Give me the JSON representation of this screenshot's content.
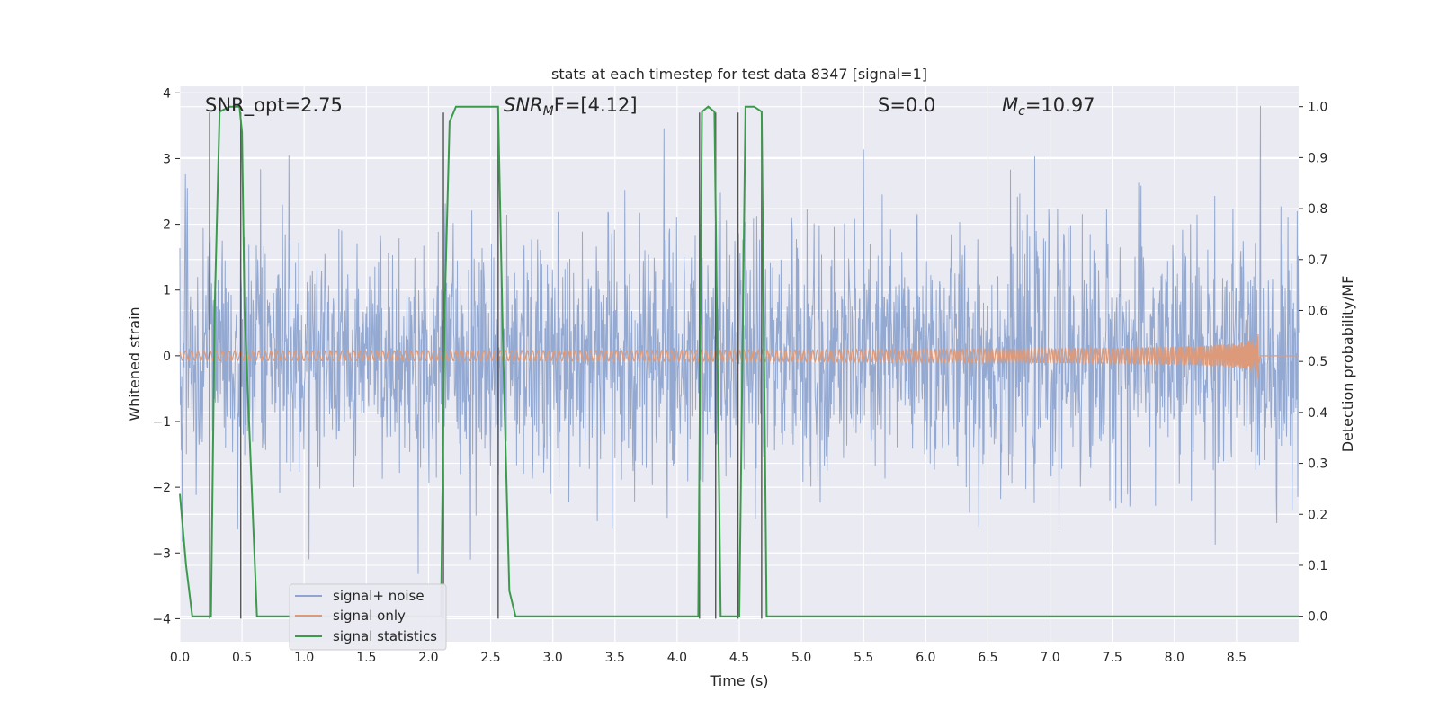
{
  "chart_data": {
    "type": "line",
    "title": "stats at each timestep for test data 8347 [signal=1]",
    "xlabel": "Time (s)",
    "ylabel_left": "Whitened strain",
    "ylabel_right": "Detection probability/MF",
    "xlim": [
      0.0,
      9.0
    ],
    "ylim_left": [
      -4.35,
      4.1
    ],
    "ylim_right": [
      -0.05,
      1.04
    ],
    "xticks": [
      0.0,
      0.5,
      1.0,
      1.5,
      2.0,
      2.5,
      3.0,
      3.5,
      4.0,
      4.5,
      5.0,
      5.5,
      6.0,
      6.5,
      7.0,
      7.5,
      8.0,
      8.5
    ],
    "xtick_labels": [
      "0.0",
      "0.5",
      "1.0",
      "1.5",
      "2.0",
      "2.5",
      "3.0",
      "3.5",
      "4.0",
      "4.5",
      "5.0",
      "5.5",
      "6.0",
      "6.5",
      "7.0",
      "7.5",
      "8.0",
      "8.5"
    ],
    "yticks_left": [
      -4,
      -3,
      -2,
      -1,
      0,
      1,
      2,
      3,
      4
    ],
    "ytick_labels_left": [
      "−4",
      "−3",
      "−2",
      "−1",
      "0",
      "1",
      "2",
      "3",
      "4"
    ],
    "yticks_right": [
      0.0,
      0.1,
      0.2,
      0.3,
      0.4,
      0.5,
      0.6,
      0.7,
      0.8,
      0.9,
      1.0
    ],
    "ytick_labels_right": [
      "0.0",
      "0.1",
      "0.2",
      "0.3",
      "0.4",
      "0.5",
      "0.6",
      "0.7",
      "0.8",
      "0.9",
      "1.0"
    ],
    "grid": true,
    "legend_position": "lower-left",
    "annotations": {
      "snr_opt": "SNR_opt=2.75",
      "snr_mf": "SNR",
      "snr_mf_sub": "M",
      "snr_mf_rest": "F=[4.12]",
      "s_stat": "S=0.0",
      "mc": "M",
      "mc_sub": "c",
      "mc_rest": "=10.97"
    },
    "series": [
      {
        "name": "signal+ noise",
        "color": "#8fa5cf",
        "axis": "left",
        "description_kind": "noise",
        "approx_std": 0.95,
        "approx_peak": 3.8
      },
      {
        "name": "signal only",
        "color": "#dd9a7a",
        "axis": "left",
        "kind": "chirp",
        "x_start": 0.0,
        "x_merger": 8.68,
        "peak_amplitude": 0.5
      },
      {
        "name": "signal statistics",
        "color": "#3c9a4c",
        "axis": "right",
        "x": [
          0.0,
          0.05,
          0.1,
          0.25,
          0.28,
          0.32,
          0.4,
          0.48,
          0.5,
          0.52,
          0.62,
          0.7,
          1.0,
          1.5,
          2.0,
          2.1,
          2.13,
          2.17,
          2.22,
          2.3,
          2.5,
          2.56,
          2.6,
          2.65,
          2.7,
          3.0,
          3.5,
          4.0,
          4.17,
          4.2,
          4.25,
          4.3,
          4.35,
          4.4,
          4.45,
          4.5,
          4.55,
          4.62,
          4.68,
          4.72,
          4.75,
          5.0,
          5.5,
          6.0,
          7.0,
          8.0,
          8.5,
          8.6,
          9.0
        ],
        "y": [
          0.24,
          0.1,
          0.0,
          0.0,
          0.6,
          0.99,
          1.0,
          1.0,
          0.95,
          0.6,
          0.0,
          0.0,
          0.0,
          0.0,
          0.0,
          0.0,
          0.6,
          0.97,
          1.0,
          1.0,
          1.0,
          1.0,
          0.52,
          0.05,
          0.0,
          0.0,
          0.0,
          0.0,
          0.0,
          0.99,
          1.0,
          0.99,
          0.0,
          0.0,
          0.0,
          0.0,
          1.0,
          1.0,
          0.99,
          0.0,
          0.0,
          0.0,
          0.0,
          0.0,
          0.0,
          0.0,
          0.0,
          0.0,
          0.0
        ]
      }
    ],
    "vertical_markers_x": [
      0.24,
      0.49,
      2.12,
      2.56,
      4.18,
      4.31,
      4.49,
      4.68
    ],
    "vertical_markers_ymax": 3.7,
    "vertical_markers_ymin": -4.0
  }
}
